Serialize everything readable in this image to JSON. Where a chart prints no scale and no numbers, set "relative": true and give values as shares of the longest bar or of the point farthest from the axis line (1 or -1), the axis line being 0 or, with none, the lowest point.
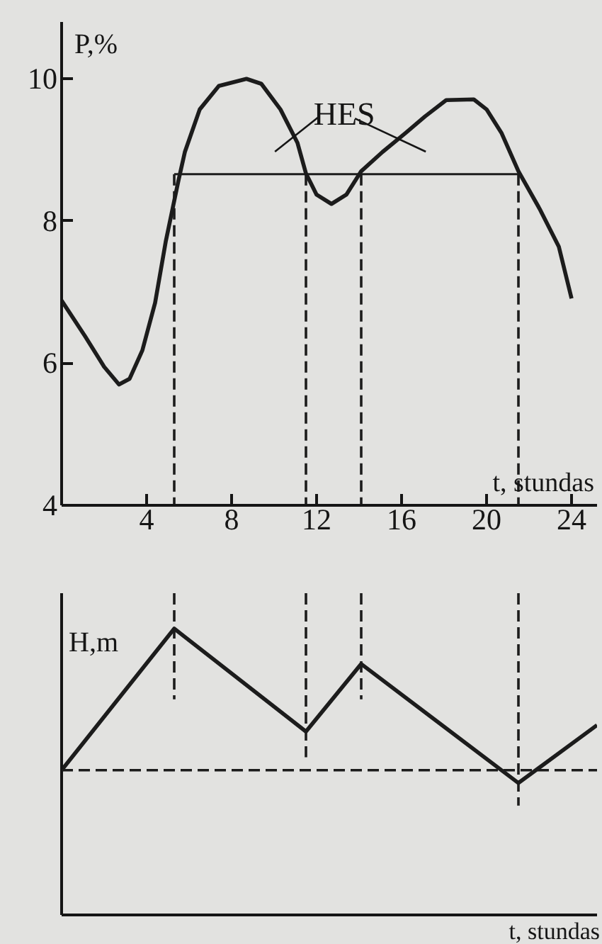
{
  "chart_data": [
    {
      "type": "line",
      "xlabel": "t, stundas",
      "ylabel": "P,%",
      "xlim": [
        0,
        25.2
      ],
      "ylim": [
        4,
        10.8
      ],
      "xticks": [
        4,
        8,
        12,
        16,
        20,
        24
      ],
      "yticks": [
        4,
        6,
        8,
        10
      ],
      "annotations": [
        "HES"
      ],
      "series": [
        {
          "color": "#1c1c1c",
          "x": [
            0,
            1.1,
            2.0,
            2.7,
            3.2,
            3.8,
            4.4,
            4.9,
            5.5,
            5.8,
            6.5,
            7.4,
            8.7,
            9.4,
            10.3,
            11.1,
            11.5,
            12.0,
            12.7,
            13.4,
            14.1,
            15.1,
            16.2,
            17.1,
            18.1,
            19.4,
            20.0,
            20.7,
            21.5,
            22.5,
            23.4,
            24.0
          ],
          "values": [
            6.88,
            6.38,
            5.95,
            5.7,
            5.78,
            6.18,
            6.85,
            7.71,
            8.57,
            8.97,
            9.57,
            9.9,
            10.0,
            9.93,
            9.57,
            9.1,
            8.67,
            8.37,
            8.24,
            8.37,
            8.7,
            8.97,
            9.24,
            9.47,
            9.7,
            9.71,
            9.57,
            9.24,
            8.7,
            8.17,
            7.64,
            6.91
          ]
        },
        {
          "color": "#1c1c1c",
          "x": [
            5.3,
            21.5
          ],
          "values": [
            8.66,
            8.66
          ]
        },
        {
          "color": "#1c1c1c",
          "line_style": "dashed",
          "x": [
            5.3,
            5.3
          ],
          "values": [
            8.66,
            4
          ]
        },
        {
          "color": "#1c1c1c",
          "line_style": "dashed",
          "x": [
            11.5,
            11.5
          ],
          "values": [
            8.66,
            4
          ]
        },
        {
          "color": "#1c1c1c",
          "line_style": "dashed",
          "x": [
            14.1,
            14.1
          ],
          "values": [
            8.66,
            4
          ]
        },
        {
          "color": "#1c1c1c",
          "line_style": "dashed",
          "x": [
            21.5,
            21.5
          ],
          "values": [
            8.66,
            4
          ]
        }
      ]
    },
    {
      "type": "line",
      "relative": true,
      "xlabel": "t, stundas",
      "ylabel": "H,m",
      "xlim": [
        0,
        25.2
      ],
      "tick_labels": false,
      "series": [
        {
          "color": "#1c1c1c",
          "x": [
            0,
            5.3,
            11.5,
            14.1,
            21.5,
            25.2
          ],
          "values": [
            0.45,
            0.89,
            0.57,
            0.78,
            0.41,
            0.59
          ]
        },
        {
          "color": "#1c1c1c",
          "line_style": "dashed",
          "x": [
            5.3,
            5.3
          ],
          "values": [
            1,
            0.67
          ]
        },
        {
          "color": "#1c1c1c",
          "line_style": "dashed",
          "x": [
            11.5,
            11.5
          ],
          "values": [
            1,
            0.49
          ]
        },
        {
          "color": "#1c1c1c",
          "line_style": "dashed",
          "x": [
            14.1,
            14.1
          ],
          "values": [
            1,
            0.67
          ]
        },
        {
          "color": "#1c1c1c",
          "line_style": "dashed",
          "x": [
            21.5,
            21.5
          ],
          "values": [
            1,
            0.34
          ]
        }
      ],
      "ref_lines": [
        {
          "axis": "y",
          "value": 0.45,
          "color": "#1c1c1c",
          "line_style": "dashed"
        }
      ]
    }
  ]
}
